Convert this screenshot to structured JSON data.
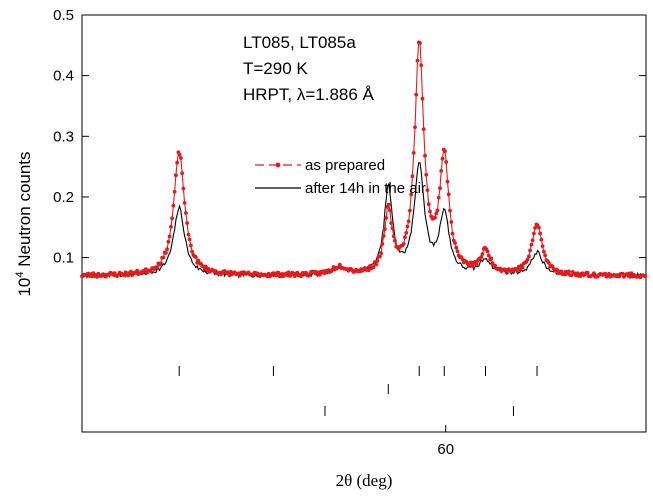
{
  "chart_data": {
    "type": "line",
    "title": "",
    "annotation_lines": [
      "LT085, LT085a",
      "T=290 K",
      "HRPT, λ=1.886 Å"
    ],
    "ylabel_base": "10",
    "ylabel_exp": "4",
    "ylabel_rest": " Neutron counts",
    "xlabel": "2θ (deg)",
    "xlim": [
      35.3,
      73.6
    ],
    "ylim": [
      -0.1875,
      0.5
    ],
    "y_ticks": [
      0.1,
      0.2,
      0.3,
      0.4,
      0.5
    ],
    "y_tick_labels": [
      "0.1",
      "0.2",
      "0.3",
      "0.4",
      "0.5"
    ],
    "x_ticks": [
      60
    ],
    "x_tick_labels": [
      "60"
    ],
    "legend_position": "center",
    "grid": false,
    "background": 0.07,
    "series": [
      {
        "name": "as prepared",
        "color": "#e41a1c",
        "style": "dashed-with-dots",
        "peaks": [
          {
            "center": 41.9,
            "height": 0.203,
            "width": 0.45
          },
          {
            "center": 52.8,
            "height": 0.013,
            "width": 0.6
          },
          {
            "center": 56.1,
            "height": 0.1,
            "width": 0.32
          },
          {
            "center": 58.2,
            "height": 0.375,
            "width": 0.38
          },
          {
            "center": 59.9,
            "height": 0.19,
            "width": 0.38
          },
          {
            "center": 62.7,
            "height": 0.036,
            "width": 0.42
          },
          {
            "center": 66.2,
            "height": 0.084,
            "width": 0.42
          }
        ]
      },
      {
        "name": "after 14h in the air",
        "color": "#000000",
        "style": "solid",
        "peaks": [
          {
            "center": 41.9,
            "height": 0.112,
            "width": 0.45
          },
          {
            "center": 52.8,
            "height": 0.011,
            "width": 0.6
          },
          {
            "center": 56.1,
            "height": 0.142,
            "width": 0.34
          },
          {
            "center": 58.2,
            "height": 0.181,
            "width": 0.4
          },
          {
            "center": 59.9,
            "height": 0.1,
            "width": 0.4
          },
          {
            "center": 62.7,
            "height": 0.025,
            "width": 0.45
          },
          {
            "center": 66.2,
            "height": 0.038,
            "width": 0.45
          }
        ]
      }
    ],
    "reflection_markers": [
      {
        "row": 1,
        "positions": [
          41.9,
          48.3,
          58.2,
          59.9,
          62.7,
          66.2
        ]
      },
      {
        "row": 2,
        "positions": [
          56.1
        ]
      },
      {
        "row": 3,
        "positions": [
          51.8,
          64.6
        ]
      }
    ]
  }
}
